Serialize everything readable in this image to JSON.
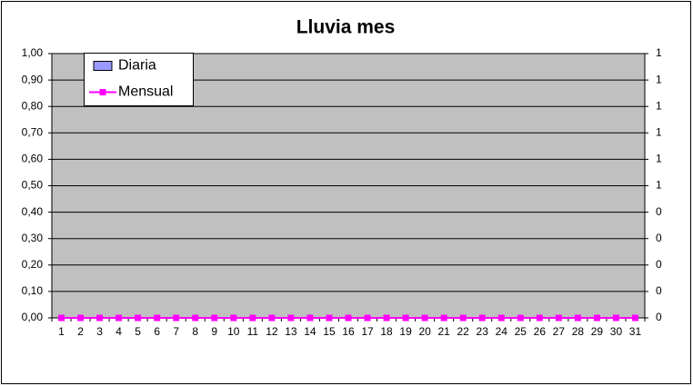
{
  "chart_data": {
    "type": "bar_line",
    "title": "Lluvia mes",
    "categories": [
      1,
      2,
      3,
      4,
      5,
      6,
      7,
      8,
      9,
      10,
      11,
      12,
      13,
      14,
      15,
      16,
      17,
      18,
      19,
      20,
      21,
      22,
      23,
      24,
      25,
      26,
      27,
      28,
      29,
      30,
      31
    ],
    "series": [
      {
        "name": "Diaria",
        "type": "bar",
        "color": "#9999ff",
        "values": [
          0,
          0,
          0,
          0,
          0,
          0,
          0,
          0,
          0,
          0,
          0,
          0,
          0,
          0,
          0,
          0,
          0,
          0,
          0,
          0,
          0,
          0,
          0,
          0,
          0,
          0,
          0,
          0,
          0,
          0,
          0
        ]
      },
      {
        "name": "Mensual",
        "type": "line",
        "axis": "y2",
        "color": "#ff00ff",
        "values": [
          0,
          0,
          0,
          0,
          0,
          0,
          0,
          0,
          0,
          0,
          0,
          0,
          0,
          0,
          0,
          0,
          0,
          0,
          0,
          0,
          0,
          0,
          0,
          0,
          0,
          0,
          0,
          0,
          0,
          0,
          0
        ]
      }
    ],
    "ylim": [
      0,
      1
    ],
    "yticks": [
      {
        "value": 0,
        "label": "0,00"
      },
      {
        "value": 0.1,
        "label": "0,10"
      },
      {
        "value": 0.2,
        "label": "0,20"
      },
      {
        "value": 0.3,
        "label": "0,30"
      },
      {
        "value": 0.4,
        "label": "0,40"
      },
      {
        "value": 0.5,
        "label": "0,50"
      },
      {
        "value": 0.6,
        "label": "0,60"
      },
      {
        "value": 0.7,
        "label": "0,70"
      },
      {
        "value": 0.8,
        "label": "0,80"
      },
      {
        "value": 0.9,
        "label": "0,90"
      },
      {
        "value": 1,
        "label": "1,00"
      }
    ],
    "y2lim": [
      0,
      1
    ],
    "y2ticks": [
      {
        "value": 0,
        "label": "0"
      },
      {
        "value": 0.1,
        "label": "0"
      },
      {
        "value": 0.2,
        "label": "0"
      },
      {
        "value": 0.3,
        "label": "0"
      },
      {
        "value": 0.4,
        "label": "0"
      },
      {
        "value": 0.5,
        "label": "1"
      },
      {
        "value": 0.6,
        "label": "1"
      },
      {
        "value": 0.7,
        "label": "1"
      },
      {
        "value": 0.8,
        "label": "1"
      },
      {
        "value": 0.9,
        "label": "1"
      },
      {
        "value": 1,
        "label": "1"
      }
    ],
    "grid": true,
    "legend": "upper left"
  }
}
